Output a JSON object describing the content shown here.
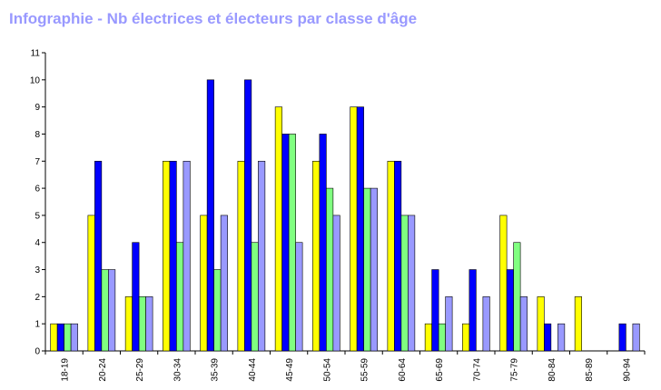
{
  "title": "Infographie - Nb électrices et électeurs par classe d'âge",
  "chart_data": {
    "type": "bar",
    "title": "Infographie - Nb électrices et électeurs par classe d'âge",
    "xlabel": "",
    "ylabel": "",
    "ylim": [
      0,
      11
    ],
    "yticks": [
      "0",
      "1",
      "2",
      "3",
      "4",
      "5",
      "6",
      "7",
      "8",
      "9",
      "10",
      "11"
    ],
    "grid": false,
    "legend": "none",
    "categories": [
      "18-19",
      "20-24",
      "25-29",
      "30-34",
      "35-39",
      "40-44",
      "45-49",
      "50-54",
      "55-59",
      "60-64",
      "65-69",
      "70-74",
      "75-79",
      "80-84",
      "85-89",
      "90-94"
    ],
    "series": [
      {
        "color": "#ffff00",
        "values": [
          1,
          5,
          2,
          7,
          5,
          7,
          9,
          7,
          9,
          7,
          1,
          1,
          5,
          2,
          2,
          0
        ]
      },
      {
        "color": "#0000ff",
        "values": [
          1,
          7,
          4,
          7,
          10,
          10,
          8,
          8,
          9,
          7,
          3,
          3,
          3,
          1,
          0,
          1
        ]
      },
      {
        "color": "#80ff80",
        "values": [
          1,
          3,
          2,
          4,
          3,
          4,
          8,
          6,
          6,
          5,
          1,
          0,
          4,
          0,
          0,
          0
        ]
      },
      {
        "color": "#9999ff",
        "values": [
          1,
          3,
          2,
          7,
          5,
          7,
          4,
          5,
          6,
          5,
          2,
          2,
          2,
          1,
          0,
          1
        ]
      }
    ]
  }
}
